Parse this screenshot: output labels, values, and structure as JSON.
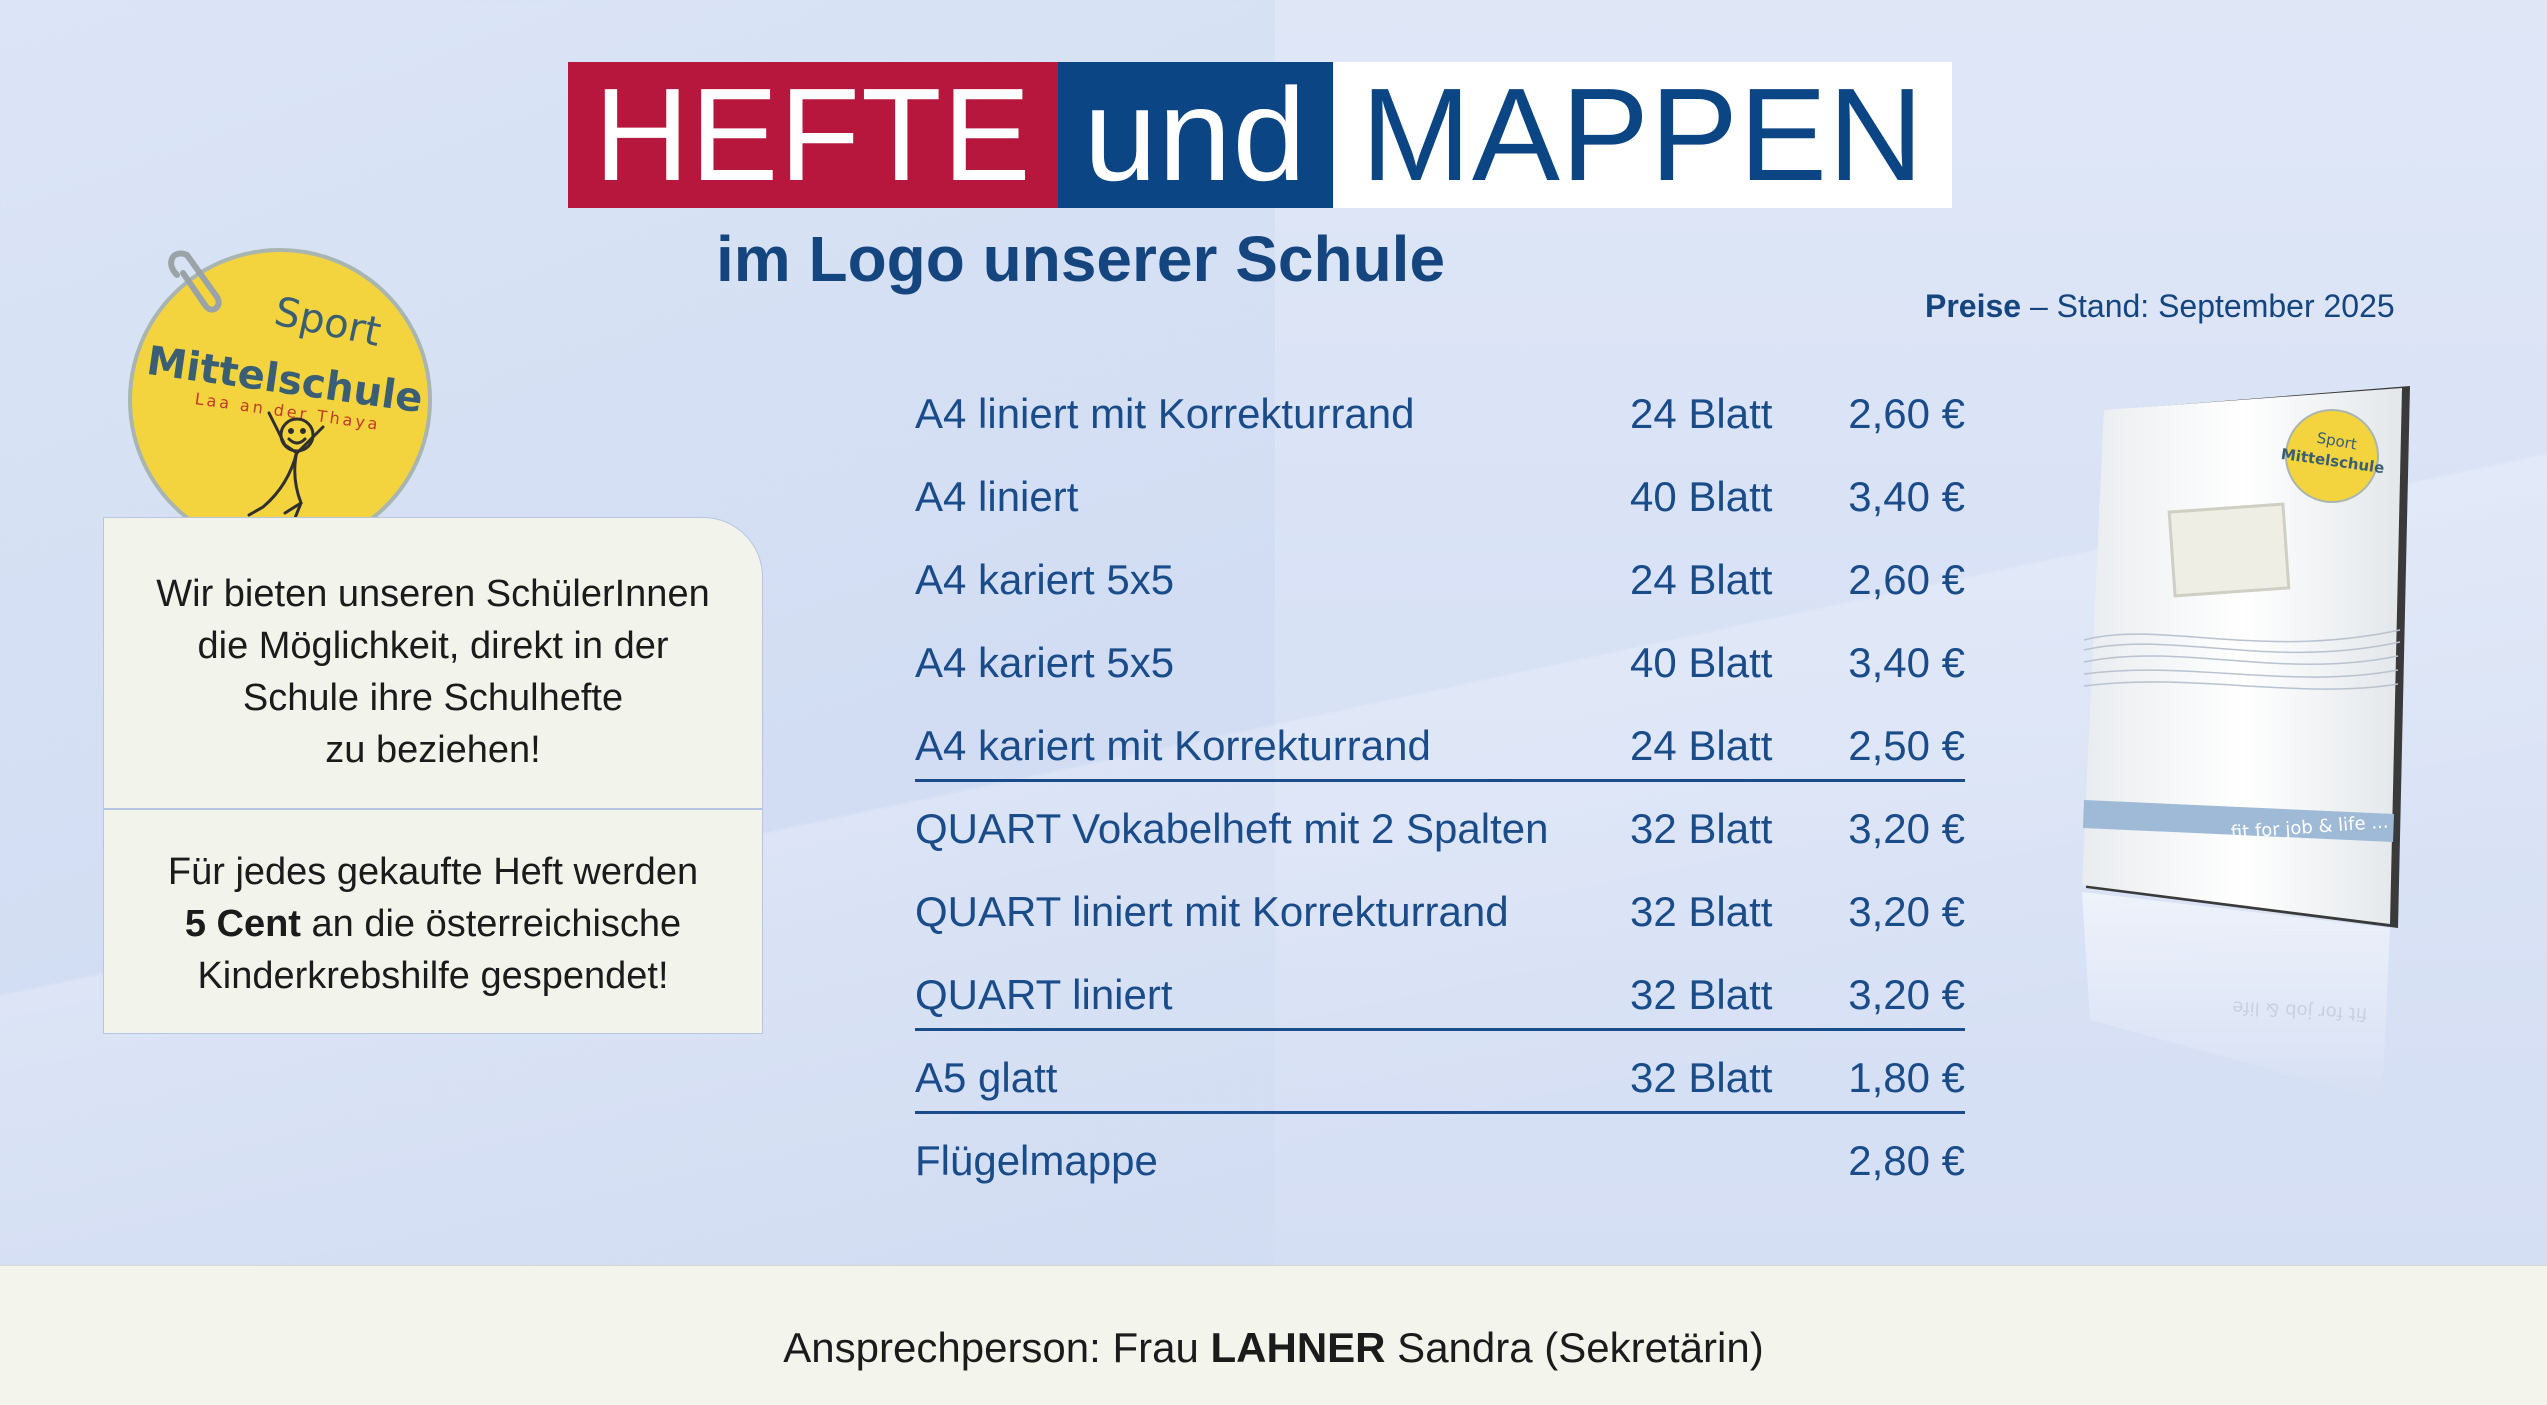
{
  "title": {
    "part1": "HEFTE",
    "part2": "und",
    "part3": "MAPPEN"
  },
  "subtitle": "im Logo unserer Schule",
  "stand": {
    "bold": "Preise",
    "rest": " – Stand: September 2025"
  },
  "logo": {
    "line1": "Sport",
    "line2": "Mittelschule",
    "line3": "Laa an der Thaya"
  },
  "info": {
    "lines1": [
      "Wir bieten unseren SchülerInnen",
      "die Möglichkeit, direkt in der",
      "Schule ihre Schulhefte",
      "zu beziehen!"
    ],
    "line2a": "Für jedes gekaufte Heft werden",
    "line2b_bold": "5 Cent",
    "line2b_rest": " an die österreichische",
    "line2c": "Kinderkrebshilfe gespendet!"
  },
  "prices": [
    {
      "name": "A4 liniert mit Korrekturrand",
      "qty": "24 Blatt",
      "price": "2,60 €",
      "underline": false
    },
    {
      "name": "A4 liniert",
      "qty": "40 Blatt",
      "price": "3,40 €",
      "underline": false
    },
    {
      "name": "A4 kariert 5x5",
      "qty": "24 Blatt",
      "price": "2,60 €",
      "underline": false
    },
    {
      "name": "A4 kariert 5x5",
      "qty": "40 Blatt",
      "price": "3,40 €",
      "underline": false
    },
    {
      "name": "A4 kariert mit Korrekturrand",
      "qty": "24 Blatt",
      "price": "2,50 €",
      "underline": true
    },
    {
      "name": "QUART Vokabelheft mit 2 Spalten",
      "qty": "32 Blatt",
      "price": "3,20 €",
      "underline": false
    },
    {
      "name": "QUART liniert mit Korrekturrand",
      "qty": "32 Blatt",
      "price": "3,20 €",
      "underline": false
    },
    {
      "name": "QUART liniert",
      "qty": "32 Blatt",
      "price": "3,20 €",
      "underline": true
    },
    {
      "name": "A5 glatt",
      "qty": "32 Blatt",
      "price": "1,80 €",
      "underline": true
    },
    {
      "name": "Flügelmappe",
      "qty": "",
      "price": "2,80 €",
      "underline": false
    }
  ],
  "notebook": {
    "band_text": "fit for job & life ...",
    "reflection_text": "fit for job & life"
  },
  "footer": {
    "prefix": "Ansprechperson: Frau ",
    "bold": "LAHNER",
    "suffix": " Sandra (Sekretärin)"
  },
  "colors": {
    "red": "#b8173d",
    "blue": "#0c4584",
    "text_blue": "#1a4c8a",
    "logo_yellow": "#f4d43e"
  }
}
